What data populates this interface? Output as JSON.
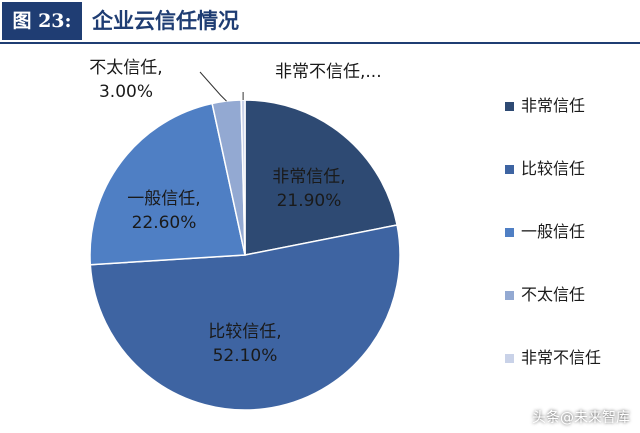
{
  "header": {
    "figure_label": "图 23:",
    "title": "企业云信任情况"
  },
  "watermark": "头条@未来智库",
  "chart_data": {
    "type": "pie",
    "slices": [
      {
        "label": "非常信任",
        "data_label": "非常信任,\n21.90%",
        "value": 21.9,
        "color": "#2e4a73"
      },
      {
        "label": "比较信任",
        "data_label": "比较信任,\n52.10%",
        "value": 52.1,
        "color": "#3e64a2"
      },
      {
        "label": "一般信任",
        "data_label": "一般信任,\n22.60%",
        "value": 22.6,
        "color": "#4f7fc4"
      },
      {
        "label": "不太信任",
        "data_label": "不太信任,\n3.00%",
        "value": 3.0,
        "color": "#93a9d2"
      },
      {
        "label": "非常不信任",
        "data_label": "非常不信任,...",
        "value": 0.4,
        "color": "#c9d2e8"
      }
    ],
    "legend_position": "right",
    "start_angle": "12 o'clock",
    "direction": "clockwise"
  }
}
